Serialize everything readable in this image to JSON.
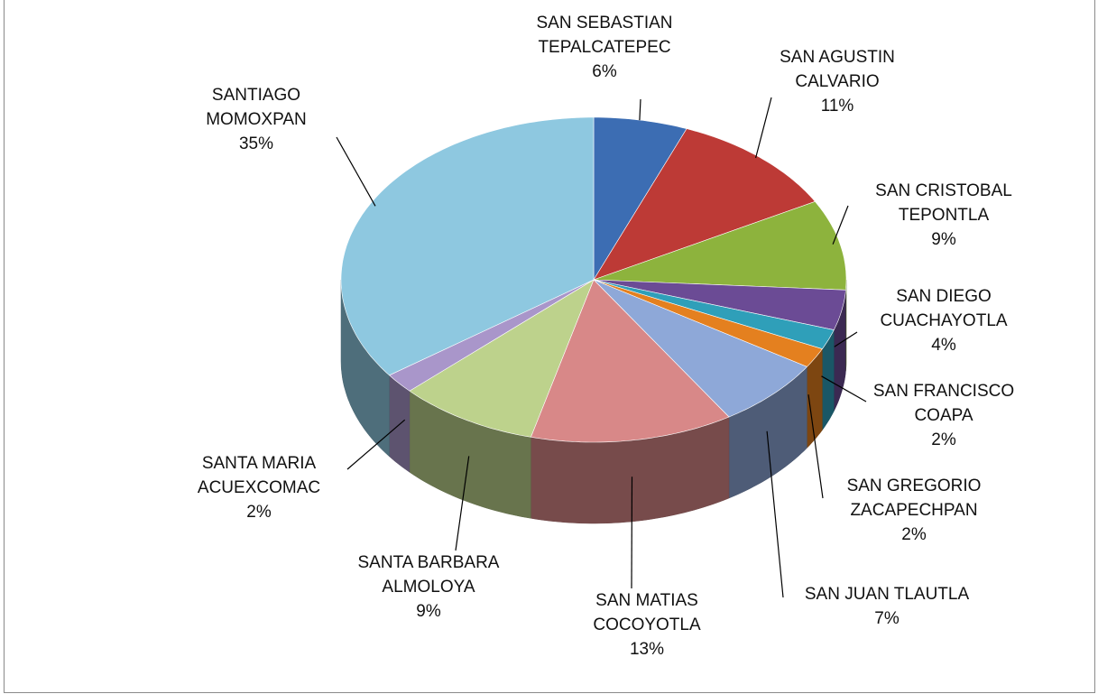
{
  "chart_data": {
    "type": "pie3d",
    "categories": [
      "SAN SEBASTIAN TEPALCATEPEC",
      "SAN AGUSTIN CALVARIO",
      "SAN CRISTOBAL TEPONTLA",
      "SAN DIEGO CUACHAYOTLA",
      "SAN FRANCISCO COAPA",
      "SAN GREGORIO ZACAPECHPAN",
      "SAN JUAN TLAUTLA",
      "SAN MATIAS COCOYOTLA",
      "SANTA BARBARA ALMOLOYA",
      "SANTA MARIA ACUEXCOMAC",
      "SANTIAGO MOMOXPAN"
    ],
    "values": [
      6,
      11,
      9,
      4,
      2,
      2,
      7,
      13,
      9,
      2,
      35
    ],
    "value_labels": [
      "6%",
      "11%",
      "9%",
      "4%",
      "2%",
      "2%",
      "7%",
      "13%",
      "9%",
      "2%",
      "35%"
    ],
    "colors": [
      "#3c6db3",
      "#bd3a36",
      "#8db33d",
      "#6b4b95",
      "#2f9fb9",
      "#e4801f",
      "#8ea8d8",
      "#d88888",
      "#bdd28c",
      "#a996ca",
      "#8ec8e0"
    ]
  }
}
